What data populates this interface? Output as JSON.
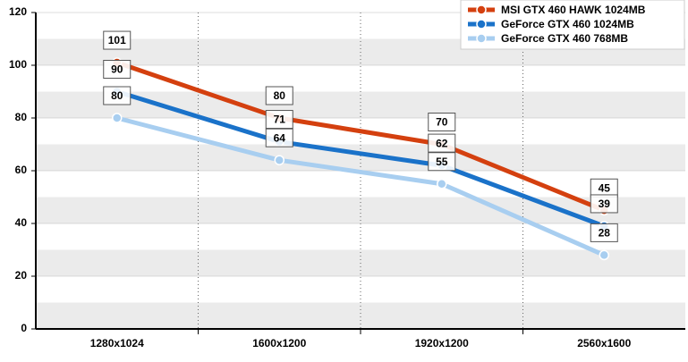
{
  "chart_data": {
    "type": "line",
    "categories": [
      "1280x1024",
      "1600x1200",
      "1920x1200",
      "2560x1600"
    ],
    "series": [
      {
        "name": "MSI GTX 460 HAWK 1024MB",
        "color": "#d4400f",
        "values": [
          101,
          80,
          70,
          45
        ]
      },
      {
        "name": "GeForce GTX 460 1024MB",
        "color": "#1a72c9",
        "values": [
          90,
          71,
          62,
          39
        ]
      },
      {
        "name": "GeForce GTX 460 768MB",
        "color": "#a8cef0",
        "values": [
          80,
          64,
          55,
          28
        ]
      }
    ],
    "ylim": [
      0,
      120
    ],
    "yticks": [
      0,
      20,
      40,
      60,
      80,
      100,
      120
    ],
    "grid": true,
    "legend": "top-right"
  }
}
